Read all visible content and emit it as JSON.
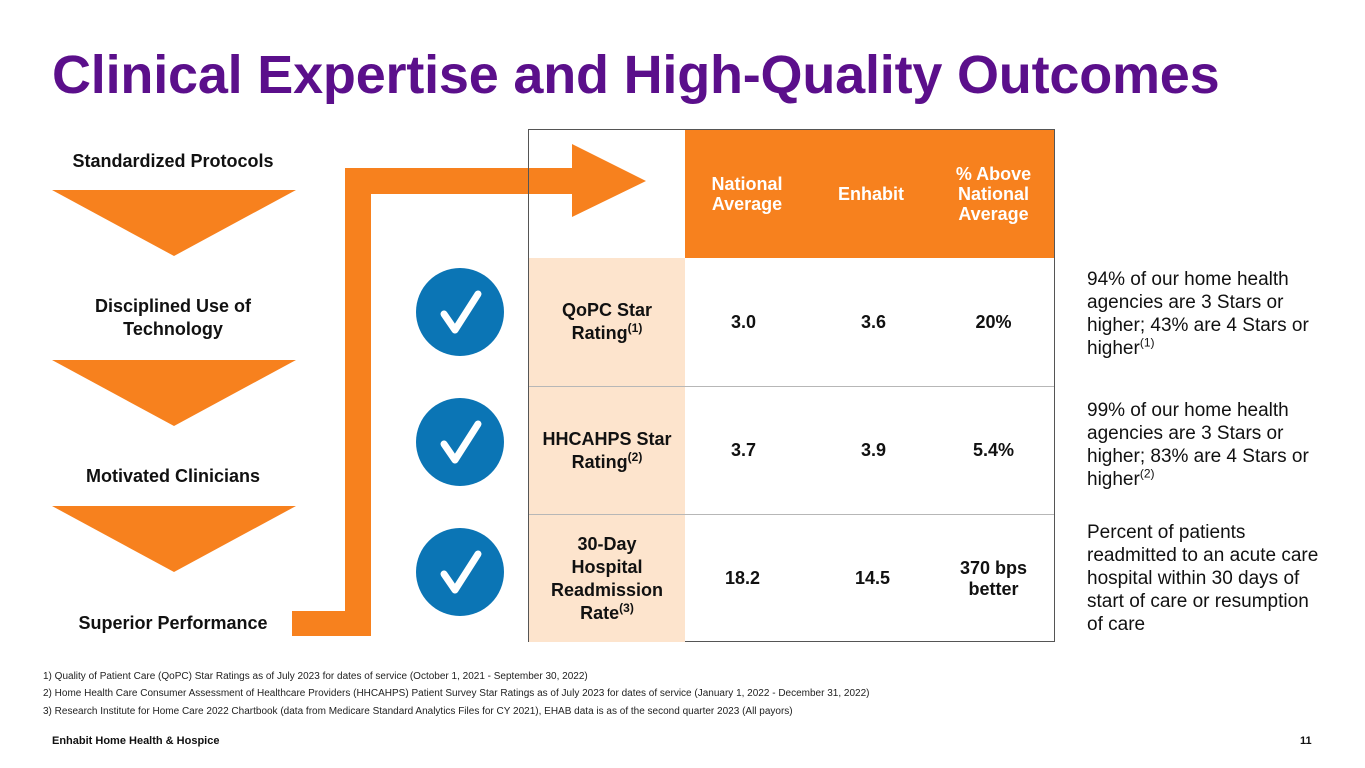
{
  "title": "Clinical Expertise and High-Quality Outcomes",
  "steps": [
    "Standardized Protocols",
    "Disciplined Use of Technology",
    "Motivated Clinicians",
    "Superior Performance"
  ],
  "table": {
    "headers": [
      "National Average",
      "Enhabit",
      "% Above National Average"
    ],
    "rows": [
      {
        "label": "QoPC Star Rating",
        "sup": "(1)",
        "national": "3.0",
        "enhabit": "3.6",
        "above": "20%"
      },
      {
        "label": "HHCAHPS Star Rating",
        "sup": "(2)",
        "national": "3.7",
        "enhabit": "3.9",
        "above": "5.4%"
      },
      {
        "label": "30-Day Hospital Readmission Rate",
        "sup": "(3)",
        "national": "18.2",
        "enhabit": "14.5",
        "above": "370 bps better"
      }
    ]
  },
  "notes": [
    {
      "text": "94% of our home health agencies are 3 Stars or higher; 43% are 4 Stars or higher",
      "sup": "(1)"
    },
    {
      "text": "99% of our home health agencies are 3 Stars or higher; 83% are 4 Stars or higher",
      "sup": "(2)"
    },
    {
      "text": "Percent of patients readmitted to an acute care hospital within 30 days of start of care or resumption of care",
      "sup": ""
    }
  ],
  "footnotes": [
    "1) Quality of Patient Care (QoPC) Star Ratings as of July 2023 for dates of service (October 1, 2021 - September 30, 2022)",
    "2) Home Health Care Consumer Assessment of Healthcare Providers (HHCAHPS) Patient Survey Star Ratings as of July 2023 for dates of service (January 1, 2022 - December 31, 2022)",
    "3) Research Institute for Home Care 2022 Chartbook (data from Medicare Standard Analytics Files for CY 2021), EHAB data is as of the second quarter 2023 (All payors)"
  ],
  "footer": {
    "company": "Enhabit Home Health & Hospice",
    "page": "11"
  },
  "colors": {
    "purple": "#5b0f8b",
    "orange": "#f7811e",
    "peach": "#fde4cd",
    "blue": "#0b75b5"
  }
}
